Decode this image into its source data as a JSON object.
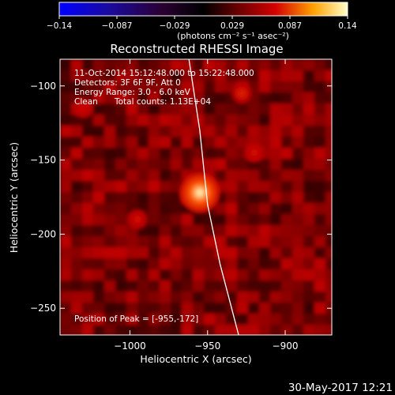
{
  "colorbar": {
    "ticks": [
      "-0.14",
      "-0.087",
      "-0.029",
      "0.029",
      "0.087",
      "0.14"
    ],
    "units_label": "(photons cm⁻² s⁻¹ asec⁻²)",
    "range": [
      -0.14,
      0.14
    ]
  },
  "annotation": {
    "time_range": "11-Oct-2014 15:12:48.000 to 15:22:48.000",
    "detectors": "Detectors: 3F 6F 9F, Att 0",
    "energy": "Energy Range: 3.0 - 6.0 keV",
    "method": "Clean",
    "counts": "Total counts: 1.13E+04",
    "peak": "Position of Peak = [-955,-172]"
  },
  "footer": {
    "date": "30-May-2017 12:21"
  },
  "colors": {
    "background": "#000000",
    "text": "#ffffff",
    "limb": "#ffffff"
  },
  "chart_data": {
    "type": "heatmap",
    "title": "Reconstructed RHESSI Image",
    "xlabel": "Heliocentric X (arcsec)",
    "ylabel": "Heliocentric Y (arcsec)",
    "xlim": [
      -1045,
      -870
    ],
    "ylim": [
      -268,
      -82
    ],
    "x_ticks": [
      -1000,
      -950,
      -900
    ],
    "y_ticks": [
      -100,
      -150,
      -200,
      -250
    ],
    "x_tick_labels": [
      "−1000",
      "−950",
      "−900"
    ],
    "y_tick_labels": [
      "−100",
      "−150",
      "−200",
      "−250"
    ],
    "colormap": "red-temperature",
    "peak": {
      "x": -955,
      "y": -172
    },
    "sources": [
      {
        "x": -955,
        "y": -172,
        "value": 0.14
      },
      {
        "x": -928,
        "y": -105,
        "value": 0.06
      },
      {
        "x": -920,
        "y": -145,
        "value": 0.03
      },
      {
        "x": -995,
        "y": -190,
        "value": 0.03
      },
      {
        "x": -1030,
        "y": -115,
        "value": 0.025
      }
    ],
    "limb": [
      [
        -962,
        -82
      ],
      [
        -955,
        -130
      ],
      [
        -950,
        -180
      ],
      [
        -942,
        -220
      ],
      [
        -930,
        -268
      ]
    ]
  }
}
